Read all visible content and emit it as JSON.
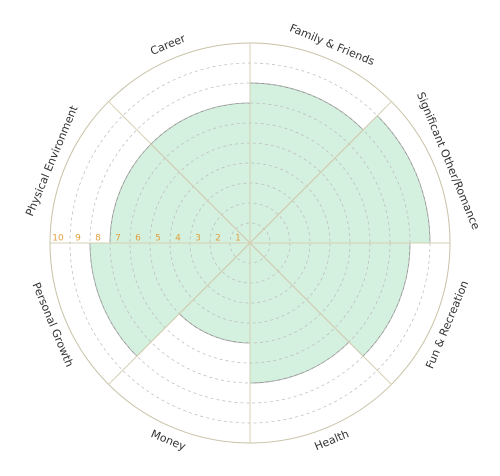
{
  "chart_data": {
    "type": "polar-area",
    "categories": [
      "Family & Friends",
      "Significant Other/Romance",
      "Fun & Recreation",
      "Health",
      "Money",
      "Personal Growth",
      "Physical Environment",
      "Career"
    ],
    "values": [
      8,
      9,
      8,
      7,
      5,
      8,
      7,
      7
    ],
    "color": "#d4f0de",
    "rlim": [
      0,
      10
    ],
    "rticks": [
      1,
      2,
      3,
      4,
      5,
      6,
      7,
      8,
      9,
      10
    ],
    "grid": true
  }
}
